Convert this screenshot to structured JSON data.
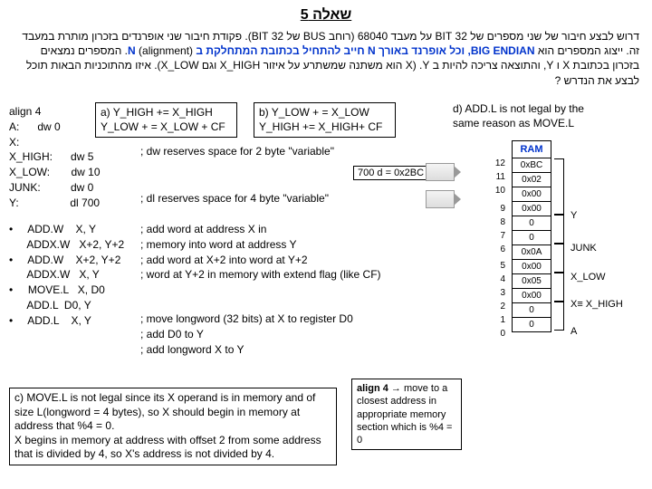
{
  "title": "שאלה 5",
  "hebrew_p1": "דרוש לבצע חיבור של שני מספרים של 32 BIT על מעבד 68040 (רוחב BUS של 32 BIT). פקודת חיבור שני אופרנדים בזכרון מותרת במעבד זה. ייצוג המספרים הוא ",
  "hebrew_blue": "BIG ENDIAN, וכל אופרנד באורך N חייב להתחיל בכתובת המתחלקת ב N",
  "hebrew_p2": "(alignment). המספרים נמצאים בזכרון בכתובת X ו Y, והתוצאה צריכה להיות ב Y. (X הוא משתנה שמשתרע על איזור X_HIGH וגם X_LOW). איזו מהתוכניות הבאות תוכל לבצע את הנדרש ?",
  "code": {
    "l1": "align 4",
    "l2": "A:      dw 0",
    "l3": "X:",
    "l4": "X_HIGH:      dw 5",
    "l5": "X_LOW:       dw 10",
    "l6": "JUNK:          dw 0",
    "l7": "Y:                 dl 700",
    "comment_dw": "; dw reserves space for 2 byte \"variable\"",
    "comment_dl": "; dl reserves space for 4 byte \"variable\"",
    "b1": "•     ADD.W    X, Y",
    "b1c1": "; add word at address X in",
    "b1c2": "; memory into word at address Y",
    "b2": "      ADDX.W   X+2, Y+2",
    "b2c1": "; add word at X+2 into word at Y+2",
    "b2c2": "; word at Y+2 in memory with extend flag (like CF)",
    "b3": "•     ADD.W    X+2, Y+2",
    "b4": "      ADDX.W   X, Y",
    "b5": "•     MOVE.L   X, D0",
    "b5c": "; move longword (32 bits) at X to register D0",
    "b6": "      ADD.L  D0, Y",
    "b6c": "; add D0 to Y",
    "b7": "•     ADD.L    X, Y",
    "b7c": "; add longword X to Y"
  },
  "box_a": {
    "l1": "a) Y_HIGH += X_HIGH",
    "l2": "Y_LOW + = X_LOW + CF"
  },
  "box_b": {
    "l1": "b) Y_LOW + = X_LOW",
    "l2": "Y_HIGH += X_HIGH+ CF"
  },
  "box_c": "c) MOVE.L is not legal since its X operand is in memory and of size L(longword = 4 bytes), so X should begin in memory at address that %4 = 0.\nX begins in memory at address with offset 2 from some address that is divided by 4, so X's address is not divided by 4.",
  "box_d": "d) ADD.L is not legal by the same reason as MOVE.L",
  "box_e": "align 4 → move to a closest address in appropriate memory section which is %4 = 0",
  "d_cell": "700 d = 0x2BC",
  "ram": {
    "title": "RAM",
    "cells": [
      "0xBC",
      "0x02",
      "0x00",
      "0x00",
      "0",
      "0",
      "0x0A",
      "0x00",
      "0x05",
      "0x00",
      "0",
      "0"
    ],
    "nums": [
      "12",
      "11",
      "10",
      "9",
      "8",
      "7",
      "6",
      "5",
      "4",
      "3",
      "2",
      "1",
      "0"
    ],
    "labels": {
      "y": "Y",
      "junk": "JUNK",
      "xlow": "X_LOW",
      "xhigh": "X≡ X_HIGH",
      "a": "A"
    }
  }
}
